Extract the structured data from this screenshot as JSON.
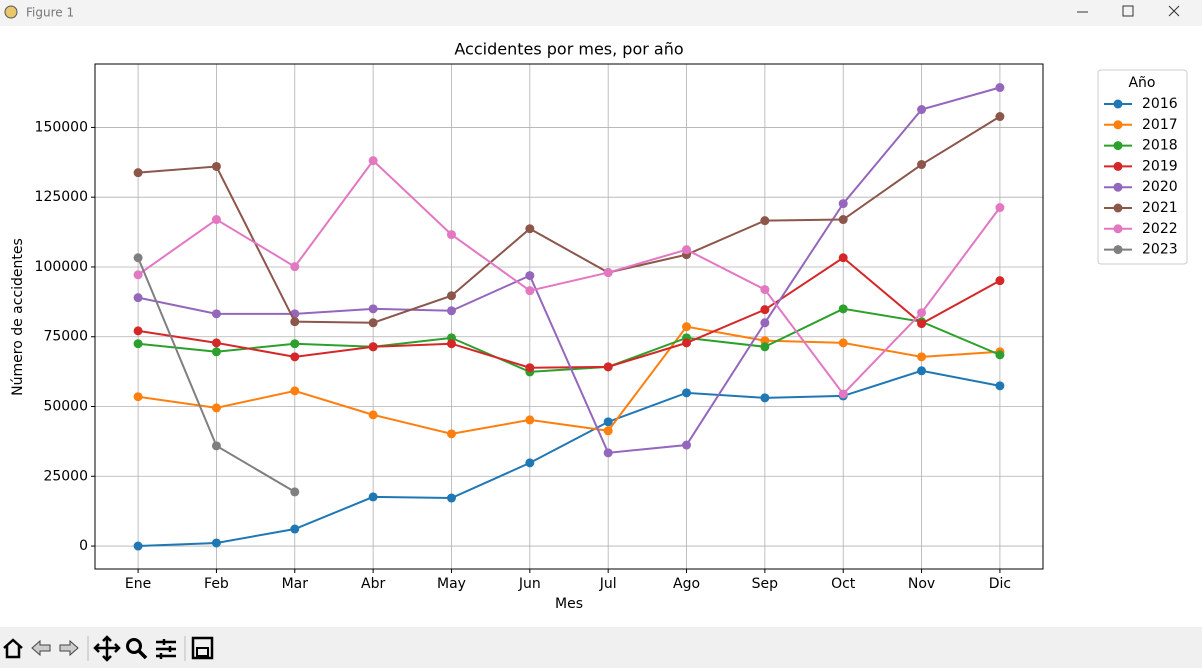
{
  "window": {
    "title": "Figure 1"
  },
  "chart_data": {
    "type": "line",
    "title": "Accidentes por mes, por año",
    "x_label": "Mes",
    "y_label": "Número de accidentes",
    "categories": [
      "Ene",
      "Feb",
      "Mar",
      "Abr",
      "May",
      "Jun",
      "Jul",
      "Ago",
      "Sep",
      "Oct",
      "Nov",
      "Dic"
    ],
    "ylim": [
      -8225,
      172725
    ],
    "yticks": [
      0,
      25000,
      50000,
      75000,
      100000,
      125000,
      150000
    ],
    "grid": true,
    "legend_title": "Año",
    "legend_position": "outside-upper-right",
    "series": [
      {
        "name": "2016",
        "color": "#1f77b4",
        "values": [
          0,
          1100,
          6100,
          17600,
          17200,
          29800,
          44500,
          54900,
          53100,
          53800,
          62800,
          57400
        ]
      },
      {
        "name": "2017",
        "color": "#ff7f0e",
        "values": [
          53500,
          49500,
          55600,
          47000,
          40200,
          45200,
          41300,
          78600,
          73600,
          72800,
          67800,
          69600
        ]
      },
      {
        "name": "2018",
        "color": "#2ca02c",
        "values": [
          72500,
          69600,
          72500,
          71400,
          74600,
          62400,
          64200,
          74600,
          71400,
          85000,
          80400,
          68500
        ]
      },
      {
        "name": "2019",
        "color": "#d62728",
        "values": [
          77100,
          72800,
          67800,
          71400,
          72500,
          63900,
          64200,
          72800,
          84700,
          103300,
          79700,
          95100
        ]
      },
      {
        "name": "2020",
        "color": "#9467bd",
        "values": [
          89000,
          83200,
          83200,
          85000,
          84300,
          96900,
          33400,
          36200,
          80000,
          122700,
          156400,
          164300
        ]
      },
      {
        "name": "2021",
        "color": "#8c564b",
        "values": [
          133800,
          136000,
          80400,
          80000,
          89700,
          113700,
          98000,
          104400,
          116600,
          117000,
          136700,
          153900
        ]
      },
      {
        "name": "2022",
        "color": "#e377c2",
        "values": [
          97200,
          117000,
          100100,
          138100,
          111600,
          91500,
          98000,
          106200,
          91900,
          54500,
          83600,
          121300
        ]
      },
      {
        "name": "2023",
        "color": "#7f7f7f",
        "values": [
          103300,
          35900,
          19400,
          null,
          null,
          null,
          null,
          null,
          null,
          null,
          null,
          null
        ]
      }
    ]
  }
}
